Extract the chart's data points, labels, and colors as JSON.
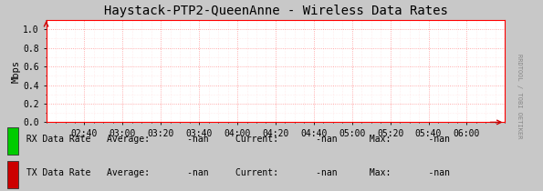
{
  "title": "Haystack-PTP2-QueenAnne - Wireless Data Rates",
  "ylabel": "Mbps",
  "bg_color": "#c8c8c8",
  "plot_bg_color": "#ffffff",
  "grid_color_major": "#ff8888",
  "grid_color_minor": "#ffcccc",
  "axis_color": "#ff0000",
  "title_color": "#000000",
  "ylabel_color": "#000000",
  "tick_label_color": "#000000",
  "ylim": [
    0.0,
    1.1
  ],
  "yticks": [
    0.0,
    0.2,
    0.4,
    0.6,
    0.8,
    1.0
  ],
  "xtick_labels": [
    "02:40",
    "03:00",
    "03:20",
    "03:40",
    "04:00",
    "04:20",
    "04:40",
    "05:00",
    "05:20",
    "05:40",
    "06:00"
  ],
  "xtick_positions": [
    1,
    2,
    3,
    4,
    5,
    6,
    7,
    8,
    9,
    10,
    11
  ],
  "xlim": [
    0,
    12
  ],
  "watermark": "RRDTOOL / TOBI OETIKER",
  "legend": [
    {
      "label": "RX Data Rate",
      "color": "#00cc00",
      "avg": "-nan",
      "current": "-nan",
      "max": "-nan"
    },
    {
      "label": "TX Data Rate",
      "color": "#cc0000",
      "avg": "-nan",
      "current": "-nan",
      "max": "-nan"
    }
  ],
  "arrow_color": "#cc0000",
  "font_family": "monospace",
  "title_fontsize": 10,
  "tick_fontsize": 7,
  "legend_fontsize": 7,
  "ylabel_fontsize": 7.5,
  "watermark_fontsize": 5,
  "watermark_color": "#888888"
}
